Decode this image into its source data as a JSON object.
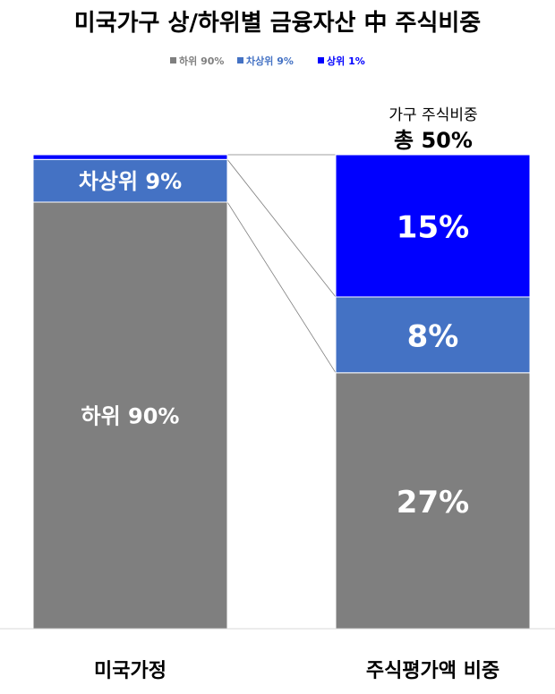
{
  "chart_data": {
    "type": "bar",
    "title": "미국가구 상/하위별 금융자산 中 주식비중",
    "categories": [
      "미국가정",
      "주식평가액 비중"
    ],
    "series": [
      {
        "name": "하위 90%",
        "values": [
          90,
          27
        ],
        "labels": [
          "하위 90%",
          "27%"
        ],
        "color": "#7f7f7f"
      },
      {
        "name": "차상위 9%",
        "values": [
          9,
          8
        ],
        "labels": [
          "차상위 9%",
          "8%"
        ],
        "color": "#4472c4"
      },
      {
        "name": "상위 1%",
        "values": [
          1,
          15
        ],
        "labels": [
          "상위 1%",
          "15%"
        ],
        "color": "#0000ff"
      }
    ],
    "annotation": {
      "subtitle": "가구 주식비중",
      "total": "총 50%"
    },
    "legend_position": "top-center",
    "grid": false
  }
}
